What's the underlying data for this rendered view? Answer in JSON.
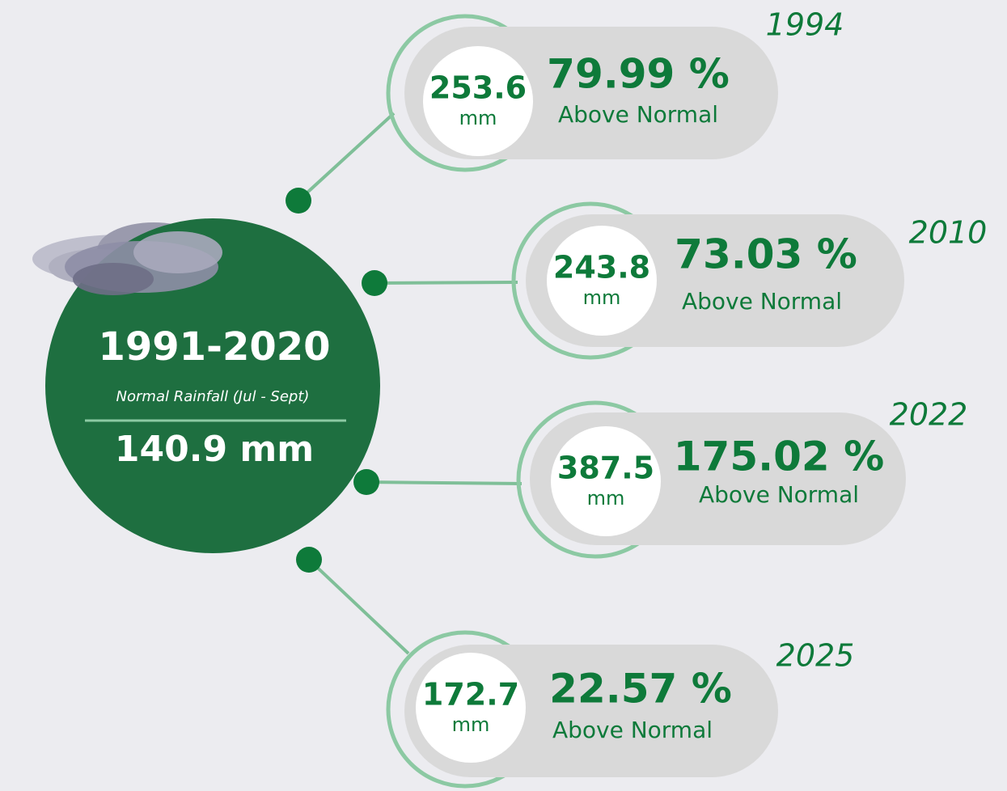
{
  "center": {
    "title": "1991-2020",
    "subtitle": "Normal Rainfall (Jul - Sept)",
    "value": "140.9 mm"
  },
  "items": [
    {
      "year": "1994",
      "amount": "253.6",
      "unit": "mm",
      "percent": "79.99 %",
      "label": "Above Normal"
    },
    {
      "year": "2010",
      "amount": "243.8",
      "unit": "mm",
      "percent": "73.03 %",
      "label": "Above Normal"
    },
    {
      "year": "2022",
      "amount": "387.5",
      "unit": "mm",
      "percent": "175.02 %",
      "label": "Above Normal"
    },
    {
      "year": "2025",
      "amount": "172.7",
      "unit": "mm",
      "percent": "22.57 %",
      "label": "Above Normal"
    }
  ]
}
